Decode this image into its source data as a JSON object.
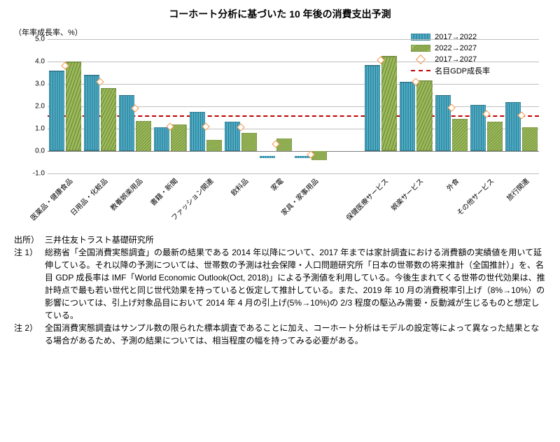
{
  "title": "コーホート分析に基づいた 10 年後の消費支出予測",
  "ylabel": "（年率成長率、%）",
  "ylim": [
    -1.0,
    5.0
  ],
  "yticks": [
    -1.0,
    0.0,
    1.0,
    2.0,
    3.0,
    4.0,
    5.0
  ],
  "ytick_labels": [
    "-1.0",
    "0.0",
    "1.0",
    "2.0",
    "3.0",
    "4.0",
    "5.0"
  ],
  "zero_line_color": "#808080",
  "grid_color": "#bfbfbf",
  "series": {
    "bar1": {
      "label": "2017→2022",
      "fill": "#4bacc6",
      "stroke": "#2e7184",
      "pattern": "vline"
    },
    "bar2": {
      "label": "2022→2027",
      "fill": "#9bbb59",
      "stroke": "#71893f",
      "pattern": "diag"
    },
    "marker": {
      "label": "2017→2027",
      "color": "#f79646"
    },
    "ref": {
      "label": "名目GDP成長率",
      "color": "#c00000",
      "value": 1.6
    }
  },
  "categories": [
    {
      "label": "医薬品・健康食品",
      "v1": 3.6,
      "v2": 4.0,
      "m": 3.8
    },
    {
      "label": "日用品・化粧品",
      "v1": 3.4,
      "v2": 2.8,
      "m": 3.1
    },
    {
      "label": "教養娯楽用品",
      "v1": 2.5,
      "v2": 1.35,
      "m": 1.9
    },
    {
      "label": "書籍・新聞",
      "v1": 1.05,
      "v2": 1.2,
      "m": 1.1
    },
    {
      "label": "ファッション関連",
      "v1": 1.75,
      "v2": 0.5,
      "m": 1.1
    },
    {
      "label": "飲料品",
      "v1": 1.3,
      "v2": 0.8,
      "m": 1.05
    },
    {
      "label": "家電",
      "v1": 0.1,
      "v2": 0.55,
      "m": 0.3
    },
    {
      "label": "家具・家事用品",
      "v1": 0.1,
      "v2": -0.4,
      "m": -0.15
    },
    {
      "label": "",
      "gap": true
    },
    {
      "label": "保健医療サービス",
      "v1": 3.85,
      "v2": 4.25,
      "m": 4.05
    },
    {
      "label": "娯楽サービス",
      "v1": 3.1,
      "v2": 3.15,
      "m": 3.1
    },
    {
      "label": "外食",
      "v1": 2.5,
      "v2": 1.45,
      "m": 1.95
    },
    {
      "label": "その他サービス",
      "v1": 2.05,
      "v2": 1.3,
      "m": 1.65
    },
    {
      "label": "旅行関連",
      "v1": 2.2,
      "v2": 1.05,
      "m": 1.6
    }
  ],
  "source_label": "出所）",
  "source_text": "三井住友トラスト基礎研究所",
  "notes": [
    {
      "key": "注 1）",
      "text": "総務省「全国消費実態調査」の最新の結果である 2014 年以降について、2017 年までは家計調査における消費額の実績値を用いて延伸している。それ以降の予測については、世帯数の予測は社会保障・人口問題研究所「日本の世帯数の将来推計（全国推計）」を、名目 GDP 成長率は IMF「World Economic Outlook(Oct, 2018)」による予測値を利用している。今後生まれてくる世帯の世代効果は、推計時点で最も若い世代と同じ世代効果を持っていると仮定して推計している。また、2019 年 10 月の消費税率引上げ（8%→10%）の影響については、引上げ対象品目において 2014 年 4 月の引上げ(5%→10%)の 2/3 程度の駆込み需要・反動減が生じるものと想定している。"
    },
    {
      "key": "注 2）",
      "text": "全国消費実態調査はサンプル数の限られた標本調査であることに加え、コーホート分析はモデルの設定等によって異なった結果となる場合があるため、予測の結果については、相当程度の幅を持ってみる必要がある。"
    }
  ]
}
